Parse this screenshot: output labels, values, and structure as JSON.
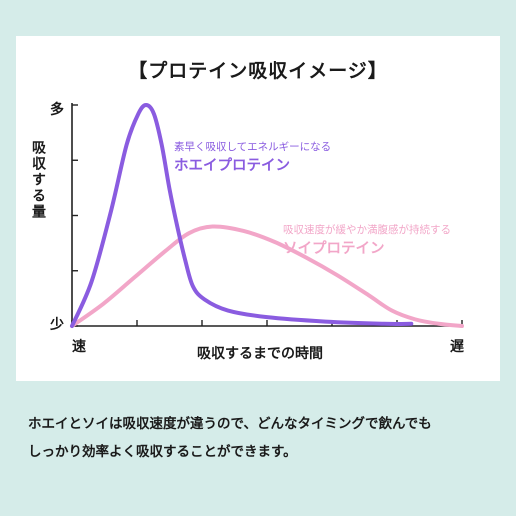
{
  "title": "【プロテイン吸収イメージ】",
  "caption": {
    "line1": "ホエイとソイは吸収速度が違うので、どんなタイミングで飲んでも",
    "line2": "しっかり効率よく吸収することができます。"
  },
  "chart_data": {
    "type": "line",
    "title": "【プロテイン吸収イメージ】",
    "xlabel": "吸収するまでの時間",
    "ylabel": "吸収する量",
    "x_tick_labels": {
      "start": "速",
      "end": "遅"
    },
    "y_tick_labels": {
      "top": "多",
      "bottom": "少"
    },
    "xlim": [
      0,
      1
    ],
    "ylim": [
      0,
      1
    ],
    "grid": false,
    "series": [
      {
        "name": "ホエイプロテイン",
        "description": "素早く吸収してエネルギーになる",
        "color": "#8a5ce0",
        "x": [
          0,
          0.05,
          0.1,
          0.14,
          0.17,
          0.19,
          0.21,
          0.23,
          0.25,
          0.27,
          0.29,
          0.31,
          0.34,
          0.4,
          0.5,
          0.65,
          0.8,
          0.87
        ],
        "y": [
          0,
          0.2,
          0.52,
          0.82,
          0.96,
          1.0,
          0.96,
          0.82,
          0.62,
          0.45,
          0.3,
          0.18,
          0.12,
          0.07,
          0.04,
          0.02,
          0.01,
          0.01
        ]
      },
      {
        "name": "ソイプロテイン",
        "description": "吸収速度が緩やか満腹感が持続する",
        "color": "#f2a6c8",
        "x": [
          0,
          0.08,
          0.16,
          0.24,
          0.3,
          0.36,
          0.44,
          0.52,
          0.6,
          0.68,
          0.76,
          0.82,
          0.88,
          0.94,
          1.0
        ],
        "y": [
          0,
          0.1,
          0.22,
          0.34,
          0.42,
          0.45,
          0.43,
          0.38,
          0.31,
          0.23,
          0.14,
          0.07,
          0.03,
          0.01,
          0.0
        ]
      }
    ]
  }
}
